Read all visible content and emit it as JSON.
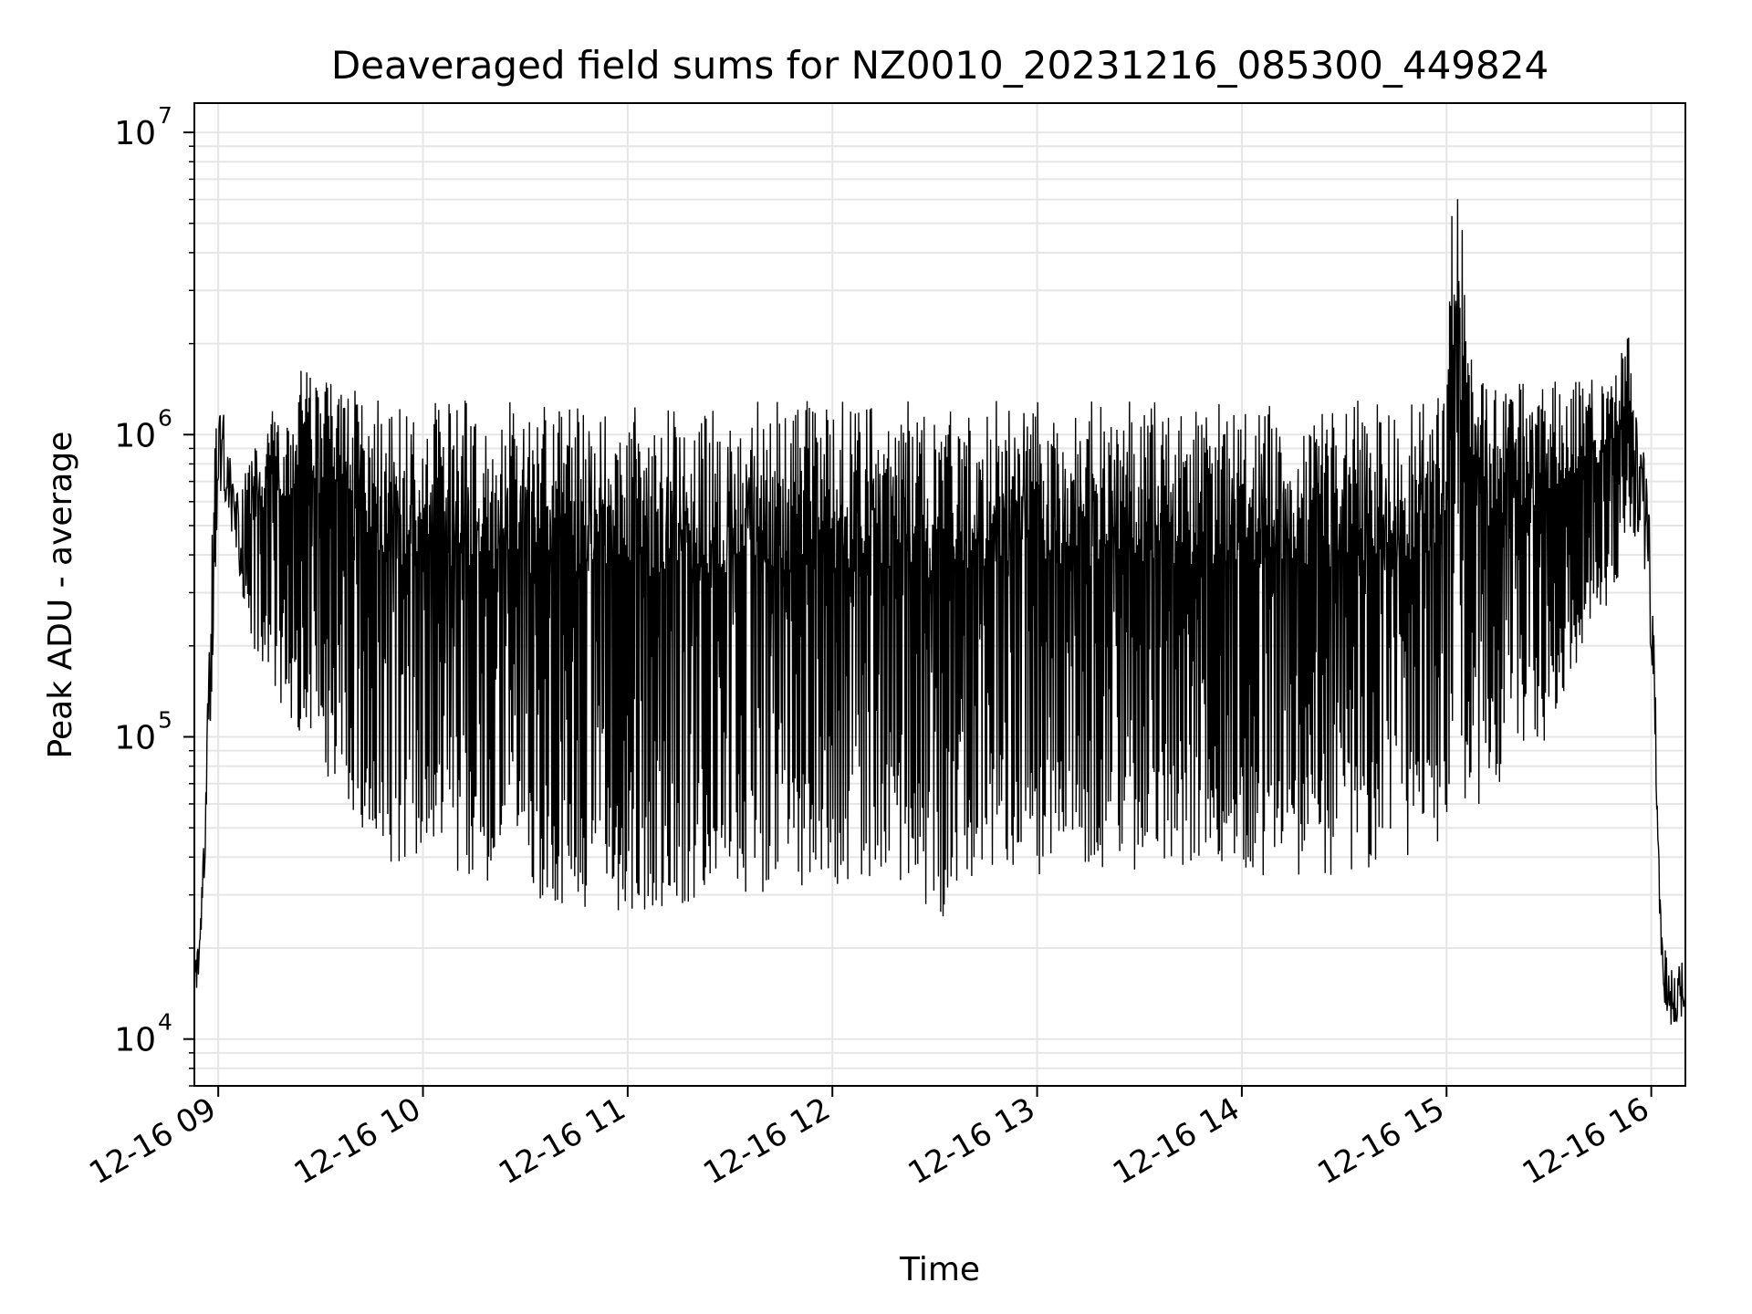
{
  "chart_data": {
    "type": "line",
    "title": "Deaveraged field sums for NZ0010_20231216_085300_449824",
    "xlabel": "Time",
    "ylabel": "Peak ADU - average",
    "x_range": [
      "2023-12-16 08:53",
      "2023-12-16 16:10"
    ],
    "yscale": "log",
    "ylim": [
      7000,
      12500000
    ],
    "grid": true,
    "line_color": "#000000",
    "x_ticks": [
      {
        "label": "12-16 09",
        "value": "2023-12-16 09:00"
      },
      {
        "label": "12-16 10",
        "value": "2023-12-16 10:00"
      },
      {
        "label": "12-16 11",
        "value": "2023-12-16 11:00"
      },
      {
        "label": "12-16 12",
        "value": "2023-12-16 12:00"
      },
      {
        "label": "12-16 13",
        "value": "2023-12-16 13:00"
      },
      {
        "label": "12-16 14",
        "value": "2023-12-16 14:00"
      },
      {
        "label": "12-16 15",
        "value": "2023-12-16 15:00"
      },
      {
        "label": "12-16 16",
        "value": "2023-12-16 16:00"
      }
    ],
    "y_ticks": [
      {
        "base": "10",
        "exp": "4",
        "value": 10000
      },
      {
        "base": "10",
        "exp": "5",
        "value": 100000
      },
      {
        "base": "10",
        "exp": "6",
        "value": 1000000
      },
      {
        "base": "10",
        "exp": "7",
        "value": 10000000
      }
    ],
    "series": [
      {
        "x": [
          "2023-12-16 08:53",
          "2023-12-16 08:55",
          "2023-12-16 08:57",
          "2023-12-16 08:59",
          "2023-12-16 09:01",
          "2023-12-16 09:03",
          "2023-12-16 09:05",
          "2023-12-16 09:07",
          "2023-12-16 09:10",
          "2023-12-16 09:15",
          "2023-12-16 09:20",
          "2023-12-16 09:25",
          "2023-12-16 09:30",
          "2023-12-16 09:35",
          "2023-12-16 09:40",
          "2023-12-16 09:45",
          "2023-12-16 09:50",
          "2023-12-16 09:55",
          "2023-12-16 10:00",
          "2023-12-16 10:10",
          "2023-12-16 10:20",
          "2023-12-16 10:30",
          "2023-12-16 10:40",
          "2023-12-16 10:50",
          "2023-12-16 11:00",
          "2023-12-16 11:10",
          "2023-12-16 11:20",
          "2023-12-16 11:30",
          "2023-12-16 11:40",
          "2023-12-16 11:50",
          "2023-12-16 12:00",
          "2023-12-16 12:10",
          "2023-12-16 12:20",
          "2023-12-16 12:30",
          "2023-12-16 12:40",
          "2023-12-16 12:50",
          "2023-12-16 13:00",
          "2023-12-16 13:10",
          "2023-12-16 13:20",
          "2023-12-16 13:30",
          "2023-12-16 13:40",
          "2023-12-16 13:50",
          "2023-12-16 14:00",
          "2023-12-16 14:10",
          "2023-12-16 14:20",
          "2023-12-16 14:30",
          "2023-12-16 14:40",
          "2023-12-16 14:50",
          "2023-12-16 15:00",
          "2023-12-16 15:02",
          "2023-12-16 15:10",
          "2023-12-16 15:20",
          "2023-12-16 15:30",
          "2023-12-16 15:40",
          "2023-12-16 15:50",
          "2023-12-16 15:53",
          "2023-12-16 15:56",
          "2023-12-16 15:59",
          "2023-12-16 16:01",
          "2023-12-16 16:03",
          "2023-12-16 16:05",
          "2023-12-16 16:07",
          "2023-12-16 16:09"
        ],
        "y_high": [
          18000,
          30000,
          150000,
          1000000,
          1300000,
          900000,
          650000,
          700000,
          900000,
          1200000,
          1400000,
          1700000,
          1600000,
          1500000,
          1400000,
          1350000,
          1300000,
          1300000,
          1300000,
          1300000,
          1300000,
          1300000,
          1300000,
          1300000,
          1300000,
          1300000,
          1300000,
          1300000,
          1300000,
          1300000,
          1300000,
          1300000,
          1300000,
          1300000,
          1300000,
          1300000,
          1300000,
          1300000,
          1300000,
          1300000,
          1300000,
          1300000,
          1300000,
          1300000,
          1300000,
          1300000,
          1300000,
          1300000,
          1350000,
          9000000,
          1500000,
          1500000,
          1500000,
          1500000,
          1600000,
          2400000,
          1000000,
          800000,
          200000,
          25000,
          18000,
          17000,
          18000
        ],
        "y_low": [
          11000,
          20000,
          60000,
          300000,
          700000,
          500000,
          400000,
          300000,
          200000,
          150000,
          120000,
          100000,
          80000,
          60000,
          50000,
          40000,
          38000,
          35000,
          35000,
          33000,
          32000,
          30000,
          28000,
          27000,
          26000,
          27000,
          28000,
          30000,
          30000,
          32000,
          32000,
          33000,
          33000,
          22000,
          33000,
          34000,
          35000,
          35000,
          35000,
          36000,
          36000,
          35000,
          35000,
          34000,
          34000,
          35000,
          36000,
          37000,
          45000,
          45000,
          60000,
          80000,
          100000,
          200000,
          300000,
          500000,
          400000,
          300000,
          100000,
          15000,
          11000,
          10000,
          12000
        ]
      }
    ]
  }
}
